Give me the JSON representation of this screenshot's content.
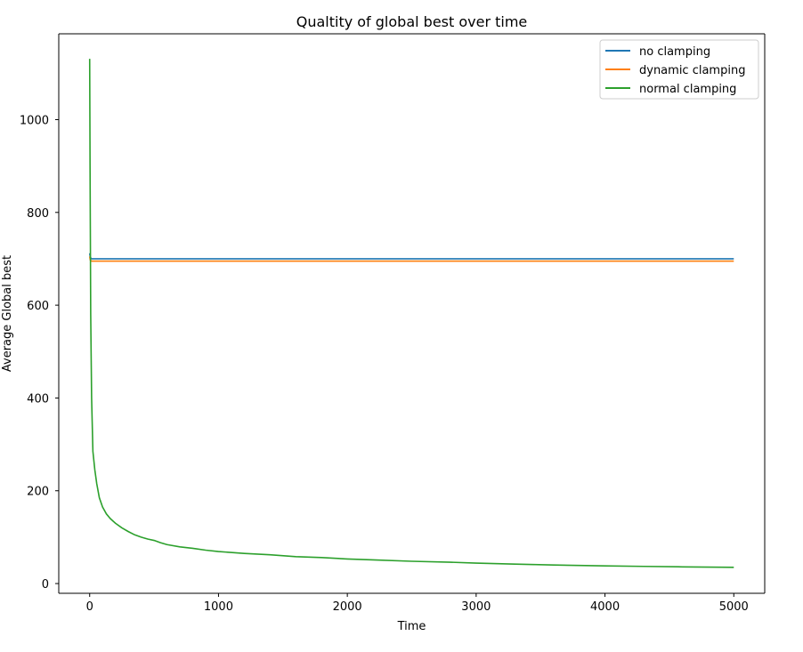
{
  "chart_data": {
    "type": "line",
    "title": "Qualtity of global best over time",
    "xlabel": "Time",
    "ylabel": "Average Global best",
    "xlim": [
      -240,
      5240
    ],
    "ylim": [
      -21,
      1185
    ],
    "xticks": [
      0,
      1000,
      2000,
      3000,
      4000,
      5000
    ],
    "xtick_labels": [
      "0",
      "1000",
      "2000",
      "3000",
      "4000",
      "5000"
    ],
    "yticks": [
      0,
      200,
      400,
      600,
      800,
      1000
    ],
    "ytick_labels": [
      "0",
      "200",
      "400",
      "600",
      "800",
      "1000"
    ],
    "grid": false,
    "legend_position": "top-right",
    "series": [
      {
        "name": "no clamping",
        "color": "#1f77b4",
        "x": [
          0,
          5,
          15,
          30,
          5000
        ],
        "y": [
          712,
          703,
          700,
          700,
          700
        ]
      },
      {
        "name": "dynamic clamping",
        "color": "#ff7f0e",
        "x": [
          0,
          5,
          15,
          30,
          5000
        ],
        "y": [
          705,
          697,
          695,
          695,
          695
        ]
      },
      {
        "name": "normal clamping",
        "color": "#2ca02c",
        "x": [
          0,
          3,
          8,
          15,
          25,
          40,
          55,
          75,
          100,
          130,
          160,
          200,
          250,
          300,
          350,
          400,
          450,
          500,
          550,
          600,
          700,
          800,
          900,
          1000,
          1200,
          1400,
          1600,
          1800,
          2000,
          2200,
          2500,
          2800,
          3000,
          3300,
          3600,
          4000,
          4300,
          4600,
          5000
        ],
        "y": [
          1131,
          900,
          580,
          400,
          285,
          245,
          215,
          185,
          165,
          150,
          140,
          130,
          120,
          112,
          105,
          100,
          96,
          93,
          88,
          84,
          79,
          76,
          72,
          69,
          65,
          62,
          58,
          56,
          53,
          51,
          48,
          46,
          44,
          42,
          40,
          38,
          37,
          36,
          35
        ]
      }
    ]
  }
}
